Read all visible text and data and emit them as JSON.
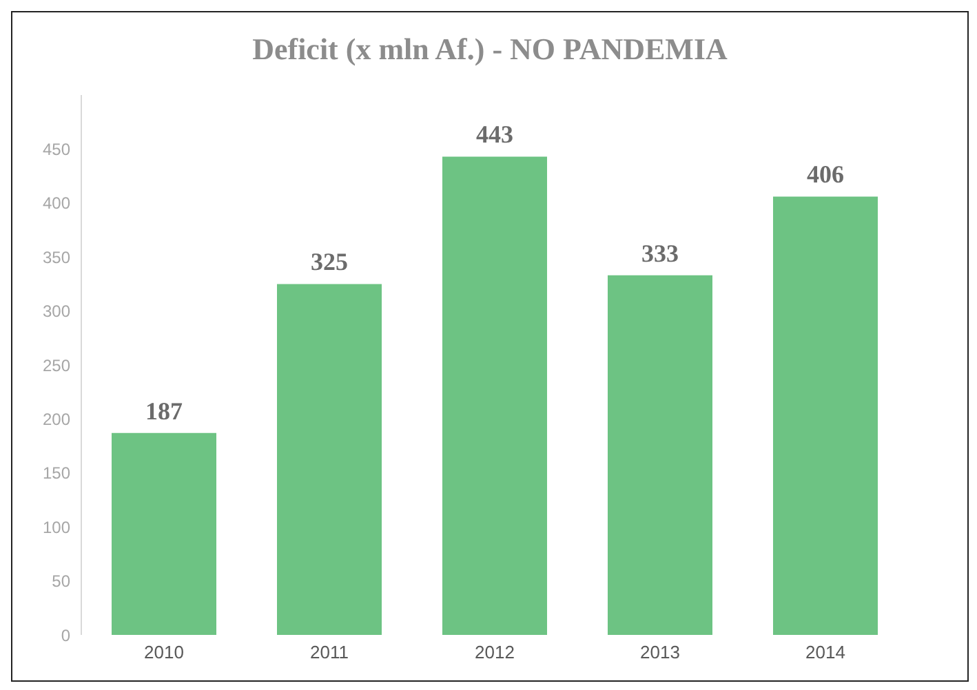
{
  "chart_data": {
    "type": "bar",
    "title": "Deficit (x mln Af.) - NO PANDEMIA",
    "categories": [
      "2010",
      "2011",
      "2012",
      "2013",
      "2014"
    ],
    "values": [
      187,
      325,
      443,
      333,
      406
    ],
    "color": "#6dc383",
    "ylim": [
      0,
      500
    ],
    "yticks": [
      0,
      50,
      100,
      150,
      200,
      250,
      300,
      350,
      400,
      450
    ],
    "grid": false,
    "data_labels": true
  }
}
